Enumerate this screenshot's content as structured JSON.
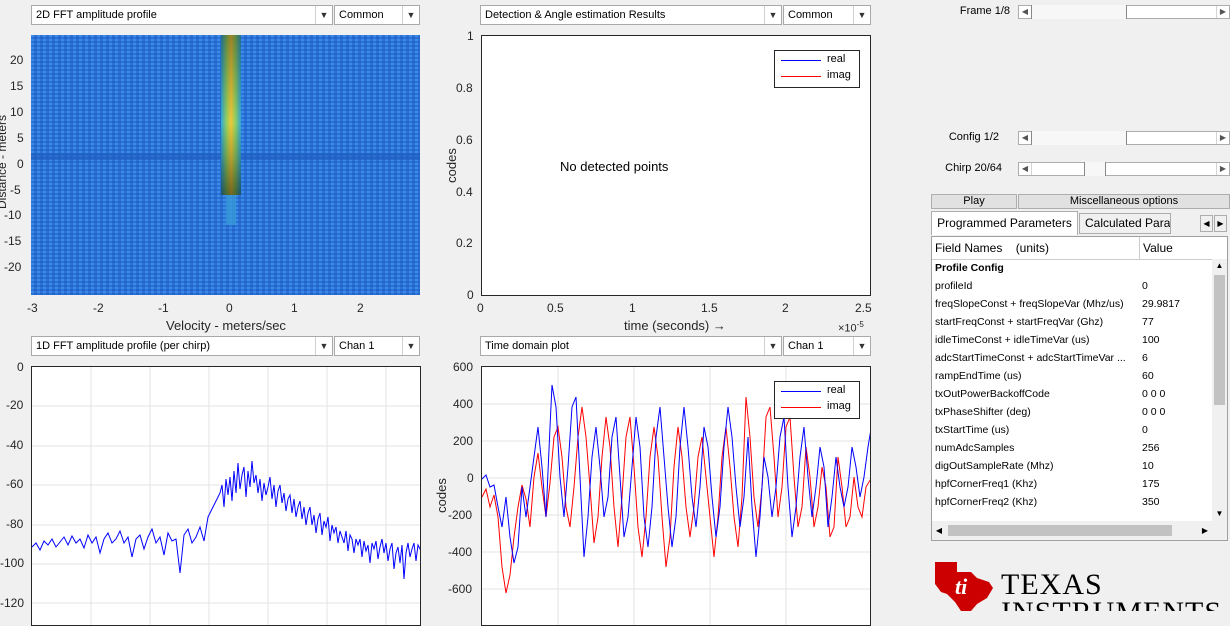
{
  "panel_2d": {
    "dropdown": "2D FFT amplitude profile",
    "mode": "Common",
    "xlabel": "Velocity - meters/sec",
    "ylabel_partial": "Distance - meters",
    "xticks": [
      "-3",
      "-2",
      "-1",
      "0",
      "1",
      "2"
    ],
    "yticks": [
      "20",
      "15",
      "10",
      "5",
      "0",
      "-5",
      "-10",
      "-15",
      "-20"
    ]
  },
  "panel_det": {
    "dropdown": "Detection & Angle estimation Results",
    "mode": "Common",
    "message": "No detected points",
    "ylabel": "codes",
    "xlabel": "time  (seconds) →",
    "exponent": "×10",
    "exponent_power": "-5",
    "yticks": [
      "1",
      "0.8",
      "0.6",
      "0.4",
      "0.2",
      "0"
    ],
    "xticks": [
      "0",
      "0.5",
      "1",
      "1.5",
      "2",
      "2.5"
    ],
    "legend": [
      "real",
      "imag"
    ]
  },
  "panel_1d": {
    "dropdown": "1D FFT amplitude profile (per chirp)",
    "channel": "Chan 1",
    "yticks": [
      "0",
      "-20",
      "-40",
      "-60",
      "-80",
      "-100",
      "-120"
    ]
  },
  "panel_td": {
    "dropdown": "Time domain plot",
    "channel": "Chan 1",
    "ylabel": "codes",
    "yticks": [
      "600",
      "400",
      "200",
      "0",
      "-200",
      "-400",
      "-600"
    ],
    "legend": [
      "real",
      "imag"
    ]
  },
  "controls": {
    "frame_label": "Frame 1/8",
    "frame_pos": 0.34,
    "config_label": "Config 1/2",
    "config_pos": 0.46,
    "chirp_label": "Chirp 20/64",
    "chirp_pos": 0.3,
    "play": "Play",
    "misc": "Miscellaneous options",
    "tab_programmed": "Programmed Parameters",
    "tab_calculated": "Calculated Parame..."
  },
  "params": {
    "col_field": "Field Names    (units)",
    "col_value": "Value",
    "section": "Profile Config",
    "rows": [
      {
        "f": "profileId",
        "v": "0"
      },
      {
        "f": "freqSlopeConst + freqSlopeVar (Mhz/us)",
        "v": "29.9817"
      },
      {
        "f": "startFreqConst + startFreqVar (Ghz)",
        "v": "77"
      },
      {
        "f": "idleTimeConst + idleTimeVar (us)",
        "v": "100"
      },
      {
        "f": "adcStartTimeConst + adcStartTimeVar ...",
        "v": "6"
      },
      {
        "f": "rampEndTime (us)",
        "v": "60"
      },
      {
        "f": "txOutPowerBackoffCode",
        "v": "0 0 0"
      },
      {
        "f": "txPhaseShifter (deg)",
        "v": "0 0 0"
      },
      {
        "f": "txStartTime (us)",
        "v": "0"
      },
      {
        "f": "numAdcSamples",
        "v": "256"
      },
      {
        "f": "digOutSampleRate (Mhz)",
        "v": "10"
      },
      {
        "f": "hpfCornerFreq1 (Khz)",
        "v": "175"
      },
      {
        "f": "hpfCornerFreq2 (Khz)",
        "v": "350"
      }
    ]
  },
  "logo": {
    "line1": "TEXAS",
    "line2": "INSTRUMENTS"
  },
  "colors": {
    "real": "#0000ff",
    "imag": "#ff0000",
    "ti_red": "#cc0000"
  }
}
